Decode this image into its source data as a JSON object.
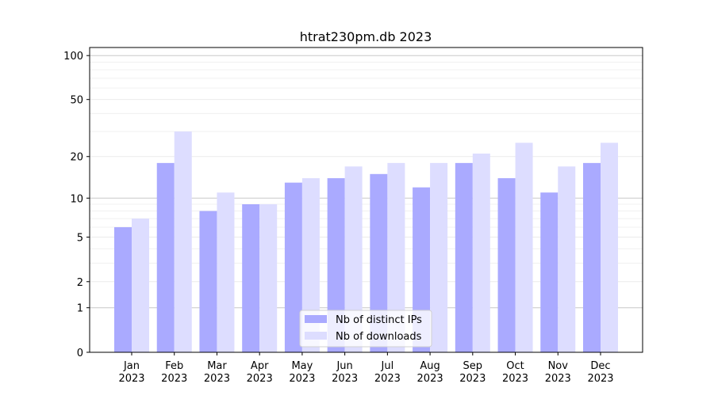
{
  "chart_data": {
    "type": "bar",
    "title": "htrat230pm.db 2023",
    "xlabel": "",
    "ylabel": "",
    "yscale": "log10(1+y)",
    "ylim": [
      0,
      116
    ],
    "yticks": [
      0,
      1,
      2,
      5,
      10,
      20,
      50,
      100
    ],
    "categories": [
      "Jan\n2023",
      "Feb\n2023",
      "Mar\n2023",
      "Apr\n2023",
      "May\n2023",
      "Jun\n2023",
      "Jul\n2023",
      "Aug\n2023",
      "Sep\n2023",
      "Oct\n2023",
      "Nov\n2023",
      "Dec\n2023"
    ],
    "series": [
      {
        "name": "Nb of distinct IPs",
        "color": "#aaaaff",
        "values": [
          6,
          18,
          8,
          9,
          13,
          14,
          15,
          12,
          18,
          14,
          11,
          18
        ]
      },
      {
        "name": "Nb of downloads",
        "color": "#ddddff",
        "values": [
          7,
          30,
          11,
          9,
          14,
          17,
          18,
          18,
          21,
          25,
          17,
          25
        ]
      }
    ],
    "grid": true,
    "legend": "bottom-center"
  }
}
